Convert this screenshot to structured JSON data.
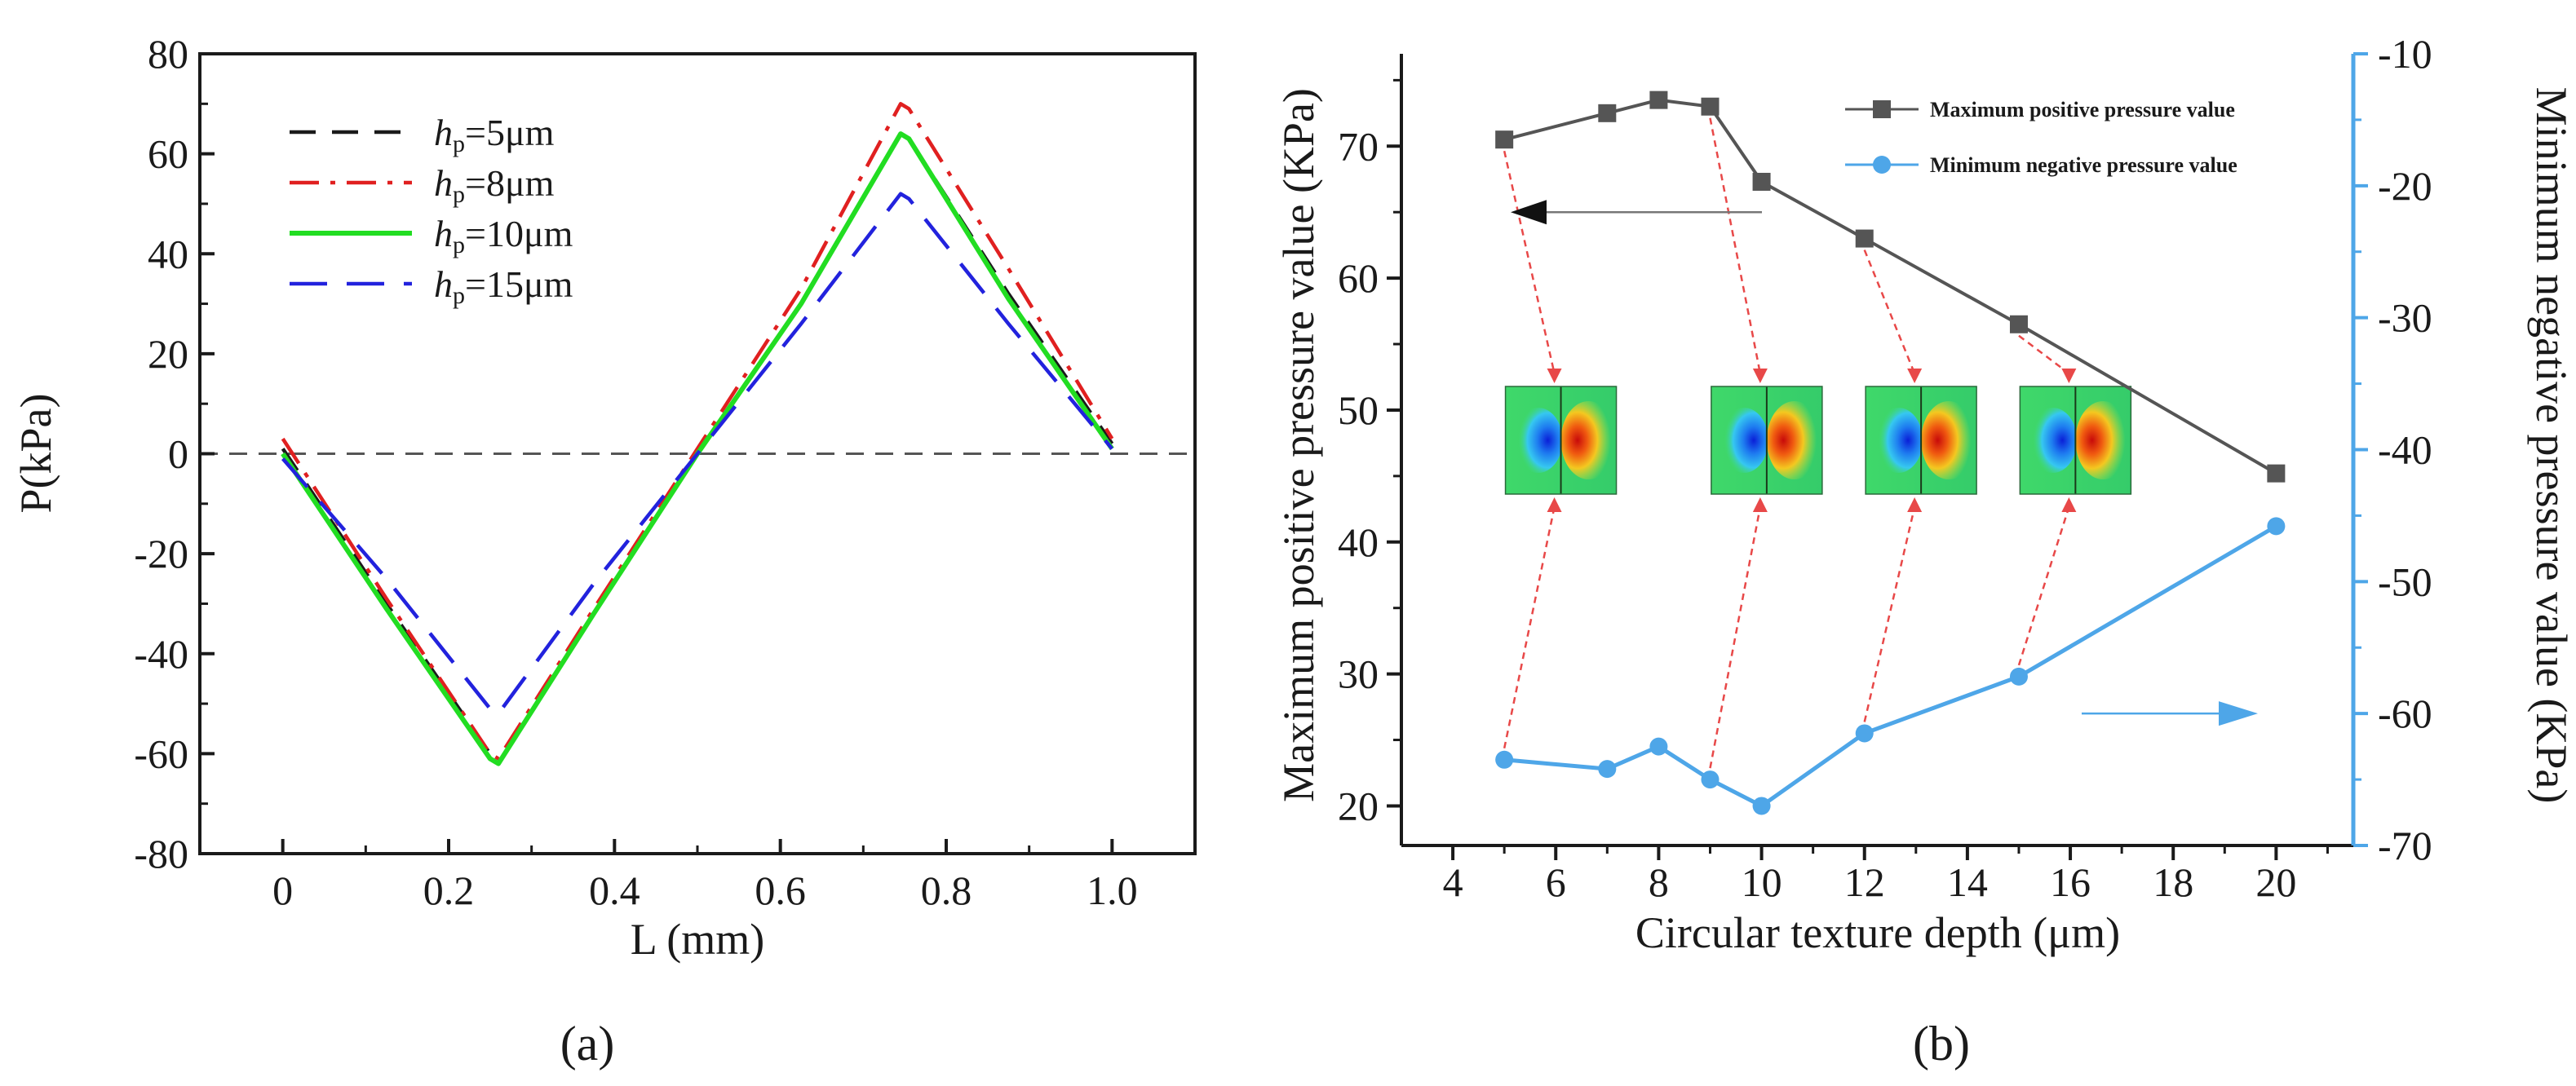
{
  "colors": {
    "axis": "#1a1a1a",
    "zero_line": "#555555",
    "hp5": "#1a1a1a",
    "hp8": "#e02020",
    "hp10": "#22dd22",
    "hp15": "#2222dd",
    "max_pos": "#555555",
    "min_neg": "#4ea6e8",
    "guide_arrow": "#e84848"
  },
  "chart_data": [
    {
      "type": "line",
      "panel_label": "(a)",
      "xlabel": "L (mm)",
      "ylabel": "P(kPa)",
      "xlim": [
        -0.1,
        1.1
      ],
      "ylim": [
        -80,
        80
      ],
      "xticks": [
        0,
        0.2,
        0.4,
        0.6,
        0.8,
        1.0
      ],
      "xtick_labels": [
        "0",
        "0.2",
        "0.4",
        "0.6",
        "0.8",
        "1.0"
      ],
      "yticks": [
        -80,
        -60,
        -40,
        -20,
        0,
        20,
        40,
        60,
        80
      ],
      "ytick_labels": [
        "-80",
        "-60",
        "-40",
        "-20",
        "0",
        "20",
        "40",
        "60",
        "80"
      ],
      "legend_position": "upper-left",
      "series": [
        {
          "key": "hp5",
          "legend_sym": "h",
          "legend_sub": "p",
          "legend_val": "=5μm",
          "style": "dashed",
          "x": [
            0,
            0.125,
            0.25,
            0.26,
            0.375,
            0.5,
            0.625,
            0.745,
            0.755,
            0.875,
            1.0
          ],
          "y": [
            1,
            -30,
            -60,
            -62,
            -32,
            0,
            30,
            64,
            63,
            32,
            2
          ]
        },
        {
          "key": "hp8",
          "legend_sym": "h",
          "legend_sub": "p",
          "legend_val": "=8μm",
          "style": "dashdot",
          "x": [
            0,
            0.125,
            0.25,
            0.26,
            0.375,
            0.5,
            0.625,
            0.745,
            0.755,
            0.875,
            1.0
          ],
          "y": [
            3,
            -29,
            -60,
            -61,
            -31,
            1,
            33,
            70,
            69,
            37,
            3
          ]
        },
        {
          "key": "hp10",
          "legend_sym": "h",
          "legend_sub": "p",
          "legend_val": "=10μm",
          "style": "solid",
          "x": [
            0,
            0.125,
            0.25,
            0.26,
            0.375,
            0.5,
            0.625,
            0.745,
            0.755,
            0.875,
            1.0
          ],
          "y": [
            0,
            -31,
            -61,
            -62,
            -32,
            0,
            30,
            64,
            63,
            31,
            1
          ]
        },
        {
          "key": "hp15",
          "legend_sym": "h",
          "legend_sub": "p",
          "legend_val": "=15μm",
          "style": "longdash",
          "x": [
            0,
            0.125,
            0.25,
            0.26,
            0.375,
            0.5,
            0.625,
            0.745,
            0.755,
            0.875,
            1.0
          ],
          "y": [
            -1,
            -25,
            -51,
            -52,
            -26,
            0,
            26,
            52,
            51,
            26,
            1
          ]
        }
      ],
      "reference_line_y": 0
    },
    {
      "type": "line",
      "panel_label": "(b)",
      "xlabel": "Circular texture depth (μm)",
      "ylabel_left": "Maximum positive pressure value (KPa)",
      "ylabel_right": "Minimum negative pressure value (KPa)",
      "xlim": [
        3,
        21.5
      ],
      "ylim_left": [
        17,
        77
      ],
      "ylim_right": [
        -70,
        -10
      ],
      "xticks": [
        4,
        6,
        8,
        10,
        12,
        14,
        16,
        18,
        20
      ],
      "xtick_labels": [
        "4",
        "6",
        "8",
        "10",
        "12",
        "14",
        "16",
        "18",
        "20"
      ],
      "yticks_left": [
        20,
        30,
        40,
        50,
        60,
        70
      ],
      "ytick_labels_left": [
        "20",
        "30",
        "40",
        "50",
        "60",
        "70"
      ],
      "yticks_right": [
        -70,
        -60,
        -50,
        -40,
        -30,
        -20,
        -10
      ],
      "ytick_labels_right": [
        "-70",
        "-60",
        "-50",
        "-40",
        "-30",
        "-20",
        "-10"
      ],
      "legend_position": "upper-right",
      "series": [
        {
          "key": "max_pos",
          "name": "Maximum positive pressure value",
          "axis": "left",
          "marker": "square",
          "x": [
            5,
            7,
            8,
            9,
            10,
            12,
            15,
            20
          ],
          "y": [
            70.5,
            72.5,
            73.5,
            73,
            67.3,
            63,
            56.5,
            45.2
          ]
        },
        {
          "key": "min_neg",
          "name": "Minimum negative pressure value",
          "axis": "right",
          "marker": "circle",
          "x": [
            5,
            7,
            8,
            9,
            10,
            12,
            15,
            20
          ],
          "y": [
            -63.5,
            -64.2,
            -62.5,
            -65,
            -67,
            -61.5,
            -57.2,
            -45.8
          ]
        }
      ],
      "insets": [
        {
          "x_depth": 5,
          "label": "pressure-contour-5um"
        },
        {
          "x_depth": 9,
          "label": "pressure-contour-9um"
        },
        {
          "x_depth": 12,
          "label": "pressure-contour-12um"
        },
        {
          "x_depth": 15,
          "label": "pressure-contour-15um"
        }
      ]
    }
  ]
}
